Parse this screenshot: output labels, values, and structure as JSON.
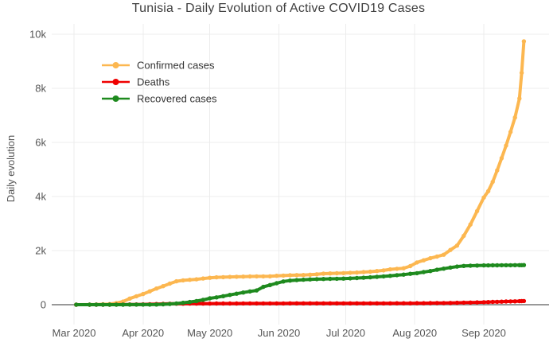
{
  "title": "Tunisia - Daily Evolution of Active COVID19 Cases",
  "y_axis": {
    "title": "Daily evolution",
    "ticks": [
      {
        "label": "0",
        "value": 0
      },
      {
        "label": "2k",
        "value": 2000
      },
      {
        "label": "4k",
        "value": 4000
      },
      {
        "label": "6k",
        "value": 6000
      },
      {
        "label": "8k",
        "value": 8000
      },
      {
        "label": "10k",
        "value": 10000
      }
    ]
  },
  "x_axis": {
    "ticks": [
      {
        "label": "Mar 2020",
        "date": "2020-03-01"
      },
      {
        "label": "Apr 2020",
        "date": "2020-04-01"
      },
      {
        "label": "May 2020",
        "date": "2020-05-01"
      },
      {
        "label": "Jun 2020",
        "date": "2020-06-01"
      },
      {
        "label": "Jul 2020",
        "date": "2020-07-01"
      },
      {
        "label": "Aug 2020",
        "date": "2020-08-01"
      },
      {
        "label": "Sep 2020",
        "date": "2020-09-01"
      }
    ]
  },
  "legend": [
    {
      "label": "Confirmed cases",
      "color": "#fcb750"
    },
    {
      "label": "Deaths",
      "color": "#ef0000"
    },
    {
      "label": "Recovered cases",
      "color": "#1e8a1e"
    }
  ],
  "colors": {
    "confirmed": "#fcb750",
    "deaths": "#ef0000",
    "recovered": "#1e8a1e",
    "grid": "#ececec",
    "zero_line": "#999999",
    "tick_text": "#555555",
    "title_text": "#3f3f3f",
    "legend_text": "#333333",
    "background": "#ffffff"
  },
  "chart_data": {
    "type": "line",
    "title": "Tunisia - Daily Evolution of Active COVID19 Cases",
    "xlabel": "",
    "ylabel": "Daily evolution",
    "ylim": [
      -500,
      10400
    ],
    "x_range": [
      "2020-03-01",
      "2020-09-30"
    ],
    "grid": true,
    "legend_position": "top-left-inside",
    "markers": true,
    "x": [
      "2020-03-02",
      "2020-03-08",
      "2020-03-11",
      "2020-03-14",
      "2020-03-17",
      "2020-03-20",
      "2020-03-23",
      "2020-03-26",
      "2020-03-29",
      "2020-04-01",
      "2020-04-04",
      "2020-04-07",
      "2020-04-10",
      "2020-04-13",
      "2020-04-16",
      "2020-04-19",
      "2020-04-22",
      "2020-04-25",
      "2020-04-28",
      "2020-05-01",
      "2020-05-04",
      "2020-05-07",
      "2020-05-10",
      "2020-05-13",
      "2020-05-16",
      "2020-05-19",
      "2020-05-22",
      "2020-05-25",
      "2020-05-28",
      "2020-05-31",
      "2020-06-03",
      "2020-06-06",
      "2020-06-09",
      "2020-06-12",
      "2020-06-15",
      "2020-06-18",
      "2020-06-21",
      "2020-06-24",
      "2020-06-27",
      "2020-06-30",
      "2020-07-03",
      "2020-07-06",
      "2020-07-09",
      "2020-07-12",
      "2020-07-15",
      "2020-07-18",
      "2020-07-21",
      "2020-07-24",
      "2020-07-27",
      "2020-07-30",
      "2020-08-02",
      "2020-08-05",
      "2020-08-08",
      "2020-08-11",
      "2020-08-14",
      "2020-08-17",
      "2020-08-20",
      "2020-08-23",
      "2020-08-26",
      "2020-08-29",
      "2020-09-01",
      "2020-09-03",
      "2020-09-05",
      "2020-09-07",
      "2020-09-09",
      "2020-09-11",
      "2020-09-13",
      "2020-09-15",
      "2020-09-17",
      "2020-09-18",
      "2020-09-19"
    ],
    "series": [
      {
        "name": "Confirmed cases",
        "color": "#fcb750",
        "values": [
          1,
          2,
          7,
          18,
          24,
          60,
          114,
          227,
          312,
          394,
          495,
          596,
          685,
          780,
          864,
          901,
          922,
          939,
          967,
          994,
          1013,
          1018,
          1026,
          1032,
          1037,
          1043,
          1046,
          1048,
          1051,
          1068,
          1077,
          1087,
          1093,
          1096,
          1110,
          1125,
          1146,
          1157,
          1162,
          1169,
          1178,
          1188,
          1205,
          1221,
          1245,
          1268,
          1306,
          1327,
          1348,
          1426,
          1561,
          1642,
          1717,
          1780,
          1847,
          2023,
          2185,
          2543,
          2964,
          3461,
          3963,
          4196,
          4542,
          4966,
          5417,
          5882,
          6385,
          6920,
          7623,
          8570,
          9736
        ]
      },
      {
        "name": "Deaths",
        "color": "#ef0000",
        "values": [
          0,
          0,
          0,
          1,
          1,
          3,
          4,
          8,
          10,
          13,
          18,
          23,
          28,
          34,
          37,
          38,
          40,
          41,
          42,
          42,
          43,
          44,
          45,
          45,
          46,
          46,
          47,
          47,
          48,
          48,
          48,
          49,
          49,
          49,
          49,
          50,
          50,
          50,
          50,
          50,
          50,
          50,
          50,
          50,
          50,
          51,
          51,
          52,
          53,
          54,
          55,
          57,
          59,
          61,
          63,
          66,
          70,
          75,
          80,
          86,
          92,
          97,
          102,
          107,
          112,
          117,
          121,
          125,
          129,
          132,
          136
        ]
      },
      {
        "name": "Recovered cases",
        "color": "#1e8a1e",
        "values": [
          0,
          0,
          0,
          0,
          0,
          1,
          1,
          2,
          2,
          3,
          3,
          5,
          16,
          25,
          43,
          71,
          100,
          131,
          180,
          235,
          270,
          316,
          362,
          407,
          450,
          491,
          525,
          660,
          727,
          795,
          860,
          890,
          910,
          925,
          935,
          944,
          950,
          955,
          960,
          965,
          975,
          985,
          998,
          1012,
          1030,
          1048,
          1068,
          1090,
          1112,
          1140,
          1166,
          1205,
          1245,
          1290,
          1332,
          1374,
          1410,
          1432,
          1442,
          1448,
          1452,
          1454,
          1456,
          1457,
          1458,
          1459,
          1460,
          1461,
          1462,
          1463,
          1464
        ]
      }
    ]
  }
}
